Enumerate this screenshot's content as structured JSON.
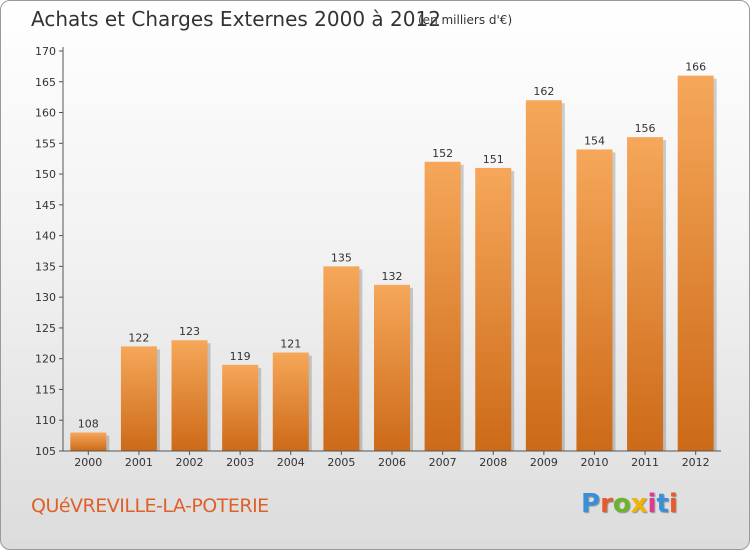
{
  "header": {
    "title": "Achats et Charges Externes 2000 à 2012",
    "unit": "(en milliers d'€)"
  },
  "footer": {
    "commune": "QUéVREVILLE-LA-POTERIE",
    "logo": {
      "letters": [
        "P",
        "r",
        "o",
        "x",
        "i",
        "t",
        "i"
      ],
      "colors": [
        "#3a8fd8",
        "#e85a2a",
        "#6bb52c",
        "#f2b400",
        "#e03a8f",
        "#3a8fd8",
        "#e85a2a"
      ]
    }
  },
  "colors": {
    "bar_top": "#f6a75a",
    "bar_bottom": "#cc6a18",
    "axis": "#555555",
    "text": "#333333"
  },
  "chart_data": {
    "type": "bar",
    "title": "Achats et Charges Externes 2000 à 2012",
    "subtitle": "(en milliers d'€)",
    "categories": [
      "2000",
      "2001",
      "2002",
      "2003",
      "2004",
      "2005",
      "2006",
      "2007",
      "2008",
      "2009",
      "2010",
      "2011",
      "2012"
    ],
    "values": [
      108,
      122,
      123,
      119,
      121,
      135,
      132,
      152,
      151,
      162,
      154,
      156,
      166
    ],
    "ylim": [
      105,
      170
    ],
    "yticks": [
      105,
      110,
      115,
      120,
      125,
      130,
      135,
      140,
      145,
      150,
      155,
      160,
      165,
      170
    ],
    "grid": false,
    "legend": "none"
  }
}
